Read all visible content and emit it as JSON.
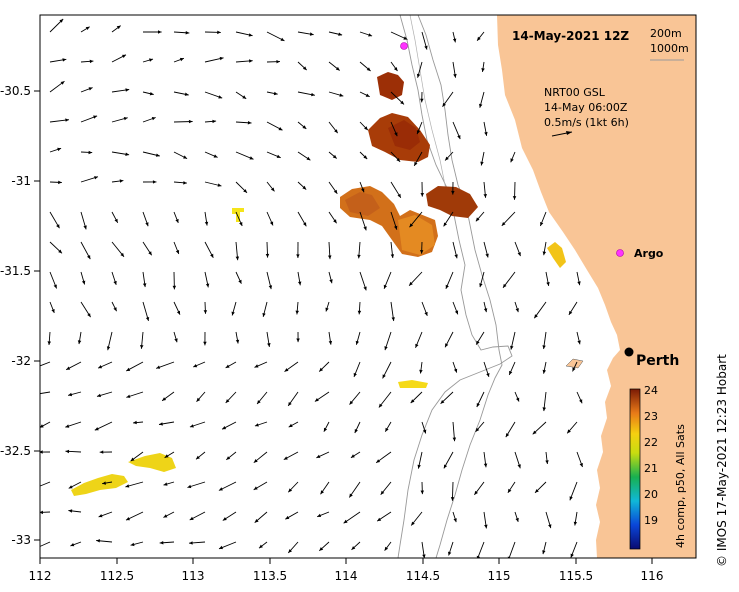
{
  "map": {
    "title": "14-May-2021 12Z",
    "depth_contours": [
      "200m",
      "1000m"
    ],
    "model": "NRT00 GSL",
    "model_time": "14-May 06:00Z",
    "vector_scale": "0.5m/s (1kt 6h)",
    "argo_label": "Argo",
    "city_label": "Perth",
    "credit": "© IMOS 17-May-2021 12:23 Hobart",
    "colorbar_title": "4h comp, p50, All Sats",
    "colorbar_ticks": [
      "24",
      "23",
      "22",
      "21",
      "20",
      "19"
    ],
    "x_ticks": [
      "112",
      "112.5",
      "113",
      "113.5",
      "114",
      "114.5",
      "115",
      "115.5",
      "116"
    ],
    "y_ticks": [
      "-30.5",
      "-31",
      "-31.5",
      "-32",
      "-32.5",
      "-33"
    ],
    "colors": {
      "land": "#f9c596",
      "argo": "#ff33ff",
      "sst_warm": "#8a2a05",
      "sst_mid": "#e0801a",
      "sst_cool": "#f5e011"
    }
  }
}
